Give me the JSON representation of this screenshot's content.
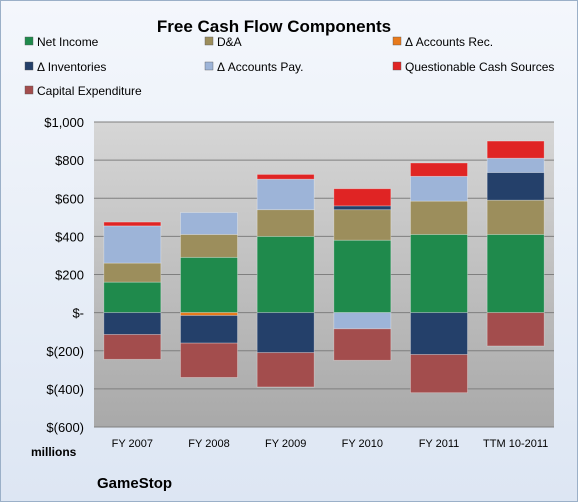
{
  "chart_data": {
    "type": "bar",
    "stacked": true,
    "title": "Free Cash Flow Components",
    "categories": [
      "FY 2007",
      "FY 2008",
      "FY 2009",
      "FY 2010",
      "FY 2011",
      "TTM 10-2011"
    ],
    "series": [
      {
        "name": "Net Income",
        "color": "#1f8a4c",
        "values": [
          160,
          290,
          400,
          380,
          410,
          410
        ]
      },
      {
        "name": "D&A",
        "color": "#9c8e5c",
        "values": [
          100,
          120,
          140,
          160,
          175,
          180
        ]
      },
      {
        "name": "Δ Accounts Rec.",
        "color": "#e87a1c",
        "values": [
          0,
          -15,
          0,
          0,
          0,
          0
        ]
      },
      {
        "name": "Δ Inventories",
        "color": "#24406a",
        "values": [
          -115,
          -145,
          -210,
          20,
          -220,
          145
        ]
      },
      {
        "name": "Δ Accounts Pay.",
        "color": "#9db4d8",
        "values": [
          195,
          115,
          160,
          -85,
          130,
          75
        ]
      },
      {
        "name": "Questionable Cash Sources",
        "color": "#e02424",
        "values": [
          20,
          0,
          25,
          90,
          70,
          90
        ]
      },
      {
        "name": "Capital Expenditure",
        "color": "#a34d4d",
        "values": [
          -130,
          -180,
          -180,
          -165,
          -200,
          -175
        ]
      }
    ],
    "ylim": [
      -600,
      1000
    ],
    "yticks": [
      1000,
      800,
      600,
      400,
      200,
      0,
      -200,
      -400,
      -600
    ],
    "ytick_labels": [
      "$1,000",
      "$800",
      "$600",
      "$400",
      "$200",
      "$-",
      "$(200)",
      "$(400)",
      "$(600)"
    ],
    "units_label": "millions",
    "company": "GameStop",
    "legend_position": "top",
    "grid": true
  }
}
